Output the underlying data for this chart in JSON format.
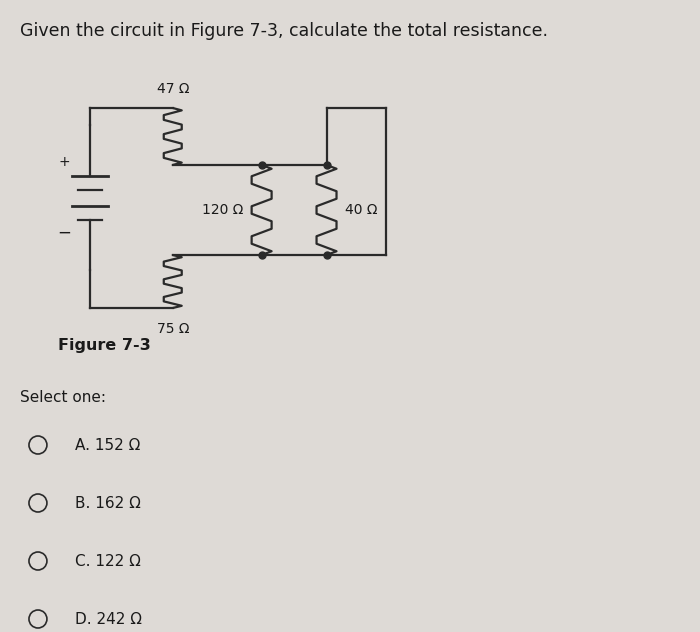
{
  "title": "Given the circuit in Figure 7-3, calculate the total resistance.",
  "figure_label": "Figure 7-3",
  "select_one": "Select one:",
  "options": [
    "A. 152 Ω",
    "B. 162 Ω",
    "C. 122 Ω",
    "D. 242 Ω"
  ],
  "r1_label": "47 Ω",
  "r2_label": "120 Ω",
  "r3_label": "40 Ω",
  "r4_label": "75 Ω",
  "bg_color": "#dedad6",
  "line_color": "#2a2a2a",
  "text_color": "#1a1a1a",
  "title_fontsize": 12.5,
  "option_fontsize": 11
}
